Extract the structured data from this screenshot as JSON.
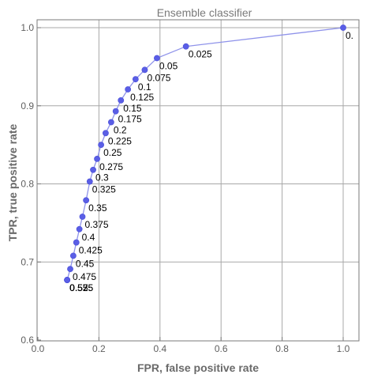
{
  "chart_data": {
    "type": "line",
    "title": "Ensemble classifier",
    "xlabel": "FPR, false positive rate",
    "ylabel": "TPR, true positive rate",
    "xlim": [
      0.0,
      1.0
    ],
    "ylim": [
      0.6,
      1.0
    ],
    "x_ticks": [
      0.0,
      0.2,
      0.4,
      0.6,
      0.8,
      1.0
    ],
    "y_ticks": [
      0.6,
      0.7,
      0.8,
      0.9,
      1.0
    ],
    "x_tick_labels": [
      "0.0",
      "0.2",
      "0.4",
      "0.6",
      "0.8",
      "1.0"
    ],
    "y_tick_labels": [
      "0.6",
      "0.7",
      "0.8",
      "0.9",
      "1.0"
    ],
    "grid": true,
    "series_color": "#5a5ee6",
    "line_color": "#8f93ea",
    "points": [
      {
        "label": "0.",
        "fpr": 1.0,
        "tpr": 1.0
      },
      {
        "label": "0.025",
        "fpr": 0.485,
        "tpr": 0.976
      },
      {
        "label": "0.05",
        "fpr": 0.39,
        "tpr": 0.961
      },
      {
        "label": "0.075",
        "fpr": 0.35,
        "tpr": 0.946
      },
      {
        "label": "0.1",
        "fpr": 0.32,
        "tpr": 0.934
      },
      {
        "label": "0.125",
        "fpr": 0.295,
        "tpr": 0.921
      },
      {
        "label": "0.15",
        "fpr": 0.272,
        "tpr": 0.907
      },
      {
        "label": "0.175",
        "fpr": 0.255,
        "tpr": 0.893
      },
      {
        "label": "0.2",
        "fpr": 0.24,
        "tpr": 0.879
      },
      {
        "label": "0.225",
        "fpr": 0.222,
        "tpr": 0.865
      },
      {
        "label": "0.25",
        "fpr": 0.207,
        "tpr": 0.85
      },
      {
        "label": "0.275",
        "fpr": 0.194,
        "tpr": 0.832
      },
      {
        "label": "0.3",
        "fpr": 0.181,
        "tpr": 0.818
      },
      {
        "label": "0.325",
        "fpr": 0.17,
        "tpr": 0.803
      },
      {
        "label": "0.35",
        "fpr": 0.158,
        "tpr": 0.779
      },
      {
        "label": "0.375",
        "fpr": 0.146,
        "tpr": 0.758
      },
      {
        "label": "0.4",
        "fpr": 0.136,
        "tpr": 0.742
      },
      {
        "label": "0.425",
        "fpr": 0.126,
        "tpr": 0.725
      },
      {
        "label": "0.45",
        "fpr": 0.116,
        "tpr": 0.708
      },
      {
        "label": "0.475",
        "fpr": 0.106,
        "tpr": 0.691
      },
      {
        "label": "0.5",
        "fpr": 0.096,
        "tpr": 0.677
      },
      {
        "label": "0.525",
        "fpr": 0.096,
        "tpr": 0.677
      },
      {
        "label": "0.55",
        "fpr": 0.096,
        "tpr": 0.677
      },
      {
        "label": "0.575",
        "fpr": 0.096,
        "tpr": 0.677
      }
    ]
  }
}
